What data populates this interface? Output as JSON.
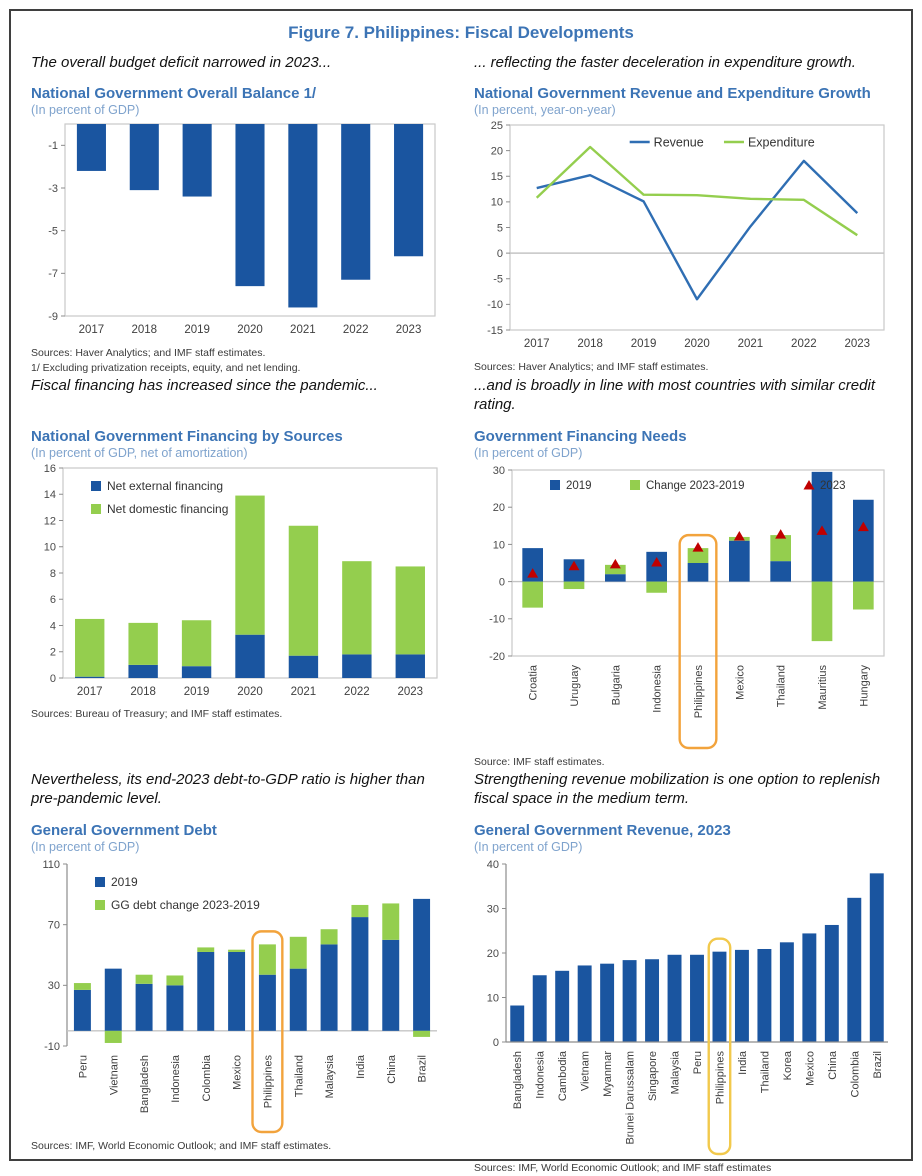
{
  "page": {
    "title": "Figure 7. Philippines: Fiscal Developments"
  },
  "style": {
    "title_blue": "#3C74B5",
    "subtitle_blue": "#7FA3CD",
    "bar_blue": "#1A55A0",
    "line_blue": "#2F6EB3",
    "green": "#94CE4E",
    "red": "#C00000",
    "highlight_orange": "#F2A33C",
    "highlight_yellow": "#F2C94C",
    "plot_border_gray": "#C9C9C9",
    "axis_gray": "#8C8C8C"
  },
  "panels": [
    {
      "caption": "The overall budget deficit narrowed in 2023...",
      "sources": [
        "Sources: Haver Analytics; and IMF staff estimates.",
        "1/ Excluding privatization receipts, equity, and net lending."
      ]
    },
    {
      "caption": "... reflecting the faster deceleration in expenditure growth.",
      "sources": [
        "Sources: Haver Analytics; and IMF staff estimates."
      ]
    },
    {
      "caption": "Fiscal financing has increased since the pandemic...",
      "sources": [
        "Sources: Bureau of Treasury; and IMF staff estimates."
      ]
    },
    {
      "caption": "...and is broadly in line with most countries with similar credit rating.",
      "sources": [
        "Source: IMF staff estimates."
      ]
    },
    {
      "caption": "Nevertheless, its end-2023 debt-to-GDP ratio is higher than pre-pandemic level.",
      "sources": [
        "Sources: IMF, World Economic Outlook; and IMF staff estimates."
      ]
    },
    {
      "caption": "Strengthening revenue mobilization is one option to replenish fiscal space in the medium term.",
      "sources": [
        "Sources: IMF, World Economic Outlook; and IMF staff estimates"
      ]
    }
  ],
  "chart_data": [
    {
      "id": "overall-balance",
      "type": "bar",
      "title": "National Government Overall Balance 1/",
      "subtitle": "(In percent of GDP)",
      "categories": [
        "2017",
        "2018",
        "2019",
        "2020",
        "2021",
        "2022",
        "2023"
      ],
      "values": [
        -2.2,
        -3.1,
        -3.4,
        -7.6,
        -8.6,
        -7.3,
        -6.2
      ],
      "bar_color": "#1A55A0",
      "ylim": [
        -9,
        0
      ],
      "yticks": [
        -1,
        -3,
        -5,
        -7,
        -9
      ],
      "frame": "box",
      "grid": false
    },
    {
      "id": "revenue-expenditure-growth",
      "type": "line",
      "title": "National Government Revenue and Expenditure Growth",
      "subtitle": "(In percent, year-on-year)",
      "categories": [
        "2017",
        "2018",
        "2019",
        "2020",
        "2021",
        "2022",
        "2023"
      ],
      "series": [
        {
          "name": "Revenue",
          "color": "#2F6EB3",
          "values": [
            12.7,
            15.2,
            10.1,
            -9.0,
            5.2,
            18.0,
            7.8
          ]
        },
        {
          "name": "Expenditure",
          "color": "#94CE4E",
          "values": [
            10.8,
            20.7,
            11.4,
            11.3,
            10.6,
            10.4,
            3.5
          ]
        }
      ],
      "ylim": [
        -15,
        25
      ],
      "yticks": [
        25,
        20,
        15,
        10,
        5,
        0,
        -5,
        -10,
        -15
      ],
      "zero_line": true,
      "legend_position": "top-center",
      "frame": "box",
      "grid": false
    },
    {
      "id": "financing-by-sources",
      "type": "stacked-bar",
      "title": "National Government Financing by Sources",
      "subtitle": "(In percent of GDP, net of amortization)",
      "categories": [
        "2017",
        "2018",
        "2019",
        "2020",
        "2021",
        "2022",
        "2023"
      ],
      "series": [
        {
          "name": "Net external financing",
          "color": "#1A55A0",
          "values": [
            0.1,
            1.0,
            0.9,
            3.3,
            1.7,
            1.8,
            1.8
          ]
        },
        {
          "name": "Net domestic financing",
          "color": "#94CE4E",
          "values": [
            4.4,
            3.2,
            3.5,
            10.6,
            9.9,
            7.1,
            6.7
          ]
        }
      ],
      "ylim": [
        0,
        16
      ],
      "yticks": [
        0,
        2,
        4,
        6,
        8,
        10,
        12,
        14,
        16
      ],
      "legend_position": "top-left",
      "frame": "box",
      "grid": false
    },
    {
      "id": "financing-needs",
      "type": "bar-change-marker",
      "title": "Government Financing Needs",
      "subtitle": "(In percent of GDP)",
      "categories": [
        "Croatia",
        "Uruguay",
        "Bulgaria",
        "Indonesia",
        "Philippines",
        "Mexico",
        "Thailand",
        "Mauritius",
        "Hungary"
      ],
      "series": [
        {
          "name": "2019",
          "color": "#1A55A0",
          "values": [
            9,
            6,
            2,
            8,
            5,
            11,
            5.5,
            29.5,
            22
          ]
        },
        {
          "name": "Change 2023-2019",
          "color": "#94CE4E",
          "values": [
            -7,
            -2,
            2.5,
            -3,
            4,
            1,
            7,
            -16,
            -7.5
          ]
        },
        {
          "name": "2023",
          "color": "#C00000",
          "marker": "triangle",
          "values": [
            2,
            4,
            4.5,
            5,
            9,
            12,
            12.5,
            13.5,
            14.5
          ]
        }
      ],
      "ylim": [
        -20,
        30
      ],
      "yticks": [
        30,
        20,
        10,
        0,
        -10,
        -20
      ],
      "zero_line": true,
      "legend_position": "top-row",
      "x_label_rotation": -90,
      "highlight_index": 4,
      "highlight_color": "#F2A33C",
      "frame": "box",
      "grid": false
    },
    {
      "id": "gg-debt",
      "type": "bar-change",
      "title": "General Government Debt",
      "subtitle": "(In percent of GDP)",
      "categories": [
        "Peru",
        "Vietnam",
        "Bangladesh",
        "Indonesia",
        "Colombia",
        "Mexico",
        "Philippines",
        "Thailand",
        "Malaysia",
        "India",
        "China",
        "Brazil"
      ],
      "series": [
        {
          "name": "2019",
          "color": "#1A55A0",
          "values": [
            27,
            41,
            31,
            30,
            52,
            52,
            37,
            41,
            57,
            75,
            60,
            87
          ]
        },
        {
          "name": "GG debt change 2023-2019",
          "color": "#94CE4E",
          "values": [
            4.5,
            -8,
            6,
            6.5,
            3,
            1.5,
            20,
            21,
            10,
            8,
            24,
            -4
          ]
        }
      ],
      "ylim": [
        -10,
        110
      ],
      "yticks": [
        110,
        70,
        30,
        -10
      ],
      "zero_line": true,
      "legend_position": "top-left",
      "x_label_rotation": -90,
      "highlight_index": 6,
      "highlight_color": "#F2A33C",
      "frame": "axis-left",
      "grid": false
    },
    {
      "id": "gg-revenue-2023",
      "type": "bar",
      "title": "General Government Revenue, 2023",
      "subtitle": "(In percent of GDP)",
      "categories": [
        "Bangladesh",
        "Indonesia",
        "Cambodia",
        "Vietnam",
        "Myanmar",
        "Brunei Darussalam",
        "Singapore",
        "Malaysia",
        "Peru",
        "Philippines",
        "India",
        "Thailand",
        "Korea",
        "Mexico",
        "China",
        "Colombia",
        "Brazil"
      ],
      "values": [
        8.2,
        15.0,
        16.0,
        17.2,
        17.6,
        18.4,
        18.6,
        19.6,
        19.6,
        20.3,
        20.7,
        20.9,
        22.4,
        24.4,
        26.3,
        32.4,
        37.9
      ],
      "bar_color": "#1A55A0",
      "ylim": [
        0,
        40
      ],
      "yticks": [
        0,
        10,
        20,
        30,
        40
      ],
      "x_label_rotation": -90,
      "highlight_index": 9,
      "highlight_color": "#F2C94C",
      "frame": "axis-left-bottom",
      "grid": false
    }
  ]
}
